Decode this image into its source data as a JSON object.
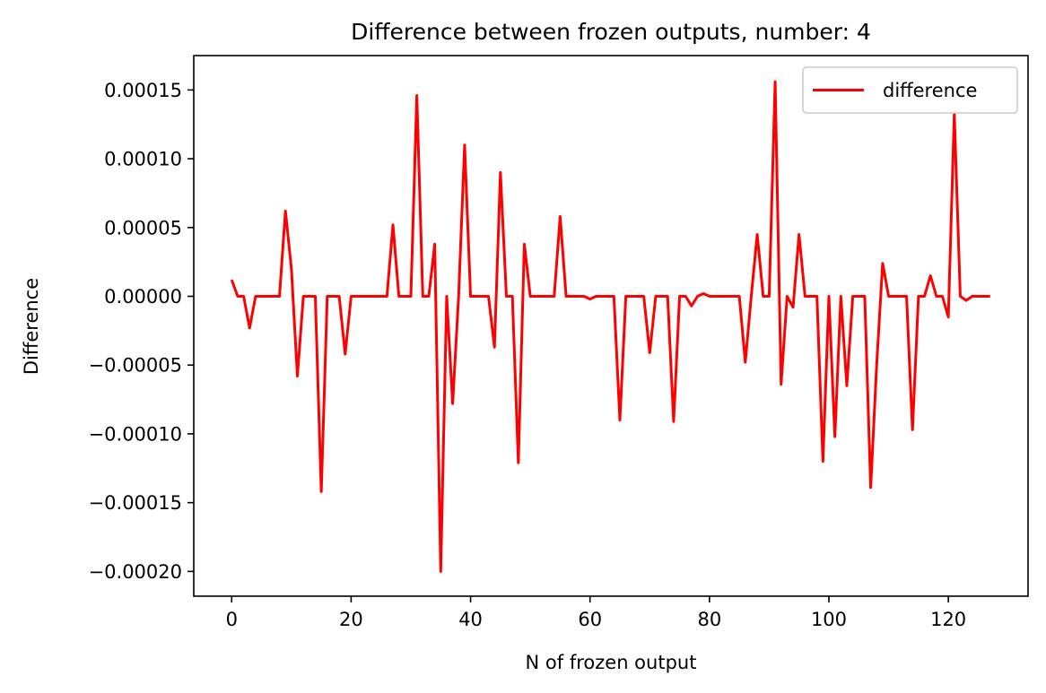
{
  "chart_data": {
    "type": "line",
    "title": "Difference between frozen outputs, number: 4",
    "xlabel": "N of frozen output",
    "ylabel": "Difference",
    "xlim": [
      -6.35,
      133.35
    ],
    "ylim": [
      -0.000218,
      0.000175
    ],
    "xticks": [
      0,
      20,
      40,
      60,
      80,
      100,
      120
    ],
    "xtick_labels": [
      "0",
      "20",
      "40",
      "60",
      "80",
      "100",
      "120"
    ],
    "yticks": [
      -0.0002,
      -0.00015,
      -0.0001,
      -5e-05,
      0,
      5e-05,
      0.0001,
      0.00015
    ],
    "ytick_labels": [
      "−0.00020",
      "−0.00015",
      "−0.00010",
      "−0.00005",
      "0.00000",
      "0.00005",
      "0.00010",
      "0.00015"
    ],
    "grid": false,
    "legend_position": "upper right",
    "series": [
      {
        "name": "difference",
        "color": "#ff0000",
        "x": [
          0,
          1,
          2,
          3,
          4,
          5,
          6,
          7,
          8,
          9,
          10,
          11,
          12,
          13,
          14,
          15,
          16,
          17,
          18,
          19,
          20,
          21,
          22,
          23,
          24,
          25,
          26,
          27,
          28,
          29,
          30,
          31,
          32,
          33,
          34,
          35,
          36,
          37,
          38,
          39,
          40,
          41,
          42,
          43,
          44,
          45,
          46,
          47,
          48,
          49,
          50,
          51,
          52,
          53,
          54,
          55,
          56,
          57,
          58,
          59,
          60,
          61,
          62,
          63,
          64,
          65,
          66,
          67,
          68,
          69,
          70,
          71,
          72,
          73,
          74,
          75,
          76,
          77,
          78,
          79,
          80,
          81,
          82,
          83,
          84,
          85,
          86,
          87,
          88,
          89,
          90,
          91,
          92,
          93,
          94,
          95,
          96,
          97,
          98,
          99,
          100,
          101,
          102,
          103,
          104,
          105,
          106,
          107,
          108,
          109,
          110,
          111,
          112,
          113,
          114,
          115,
          116,
          117,
          118,
          119,
          120,
          121,
          122,
          123,
          124,
          125,
          126,
          127
        ],
        "y": [
          1.2e-05,
          0,
          0,
          -2.3e-05,
          0,
          0,
          0,
          0,
          0,
          6.2e-05,
          2e-05,
          -5.8e-05,
          0,
          0,
          0,
          -0.000142,
          0,
          0,
          0,
          -4.2e-05,
          0,
          0,
          0,
          0,
          0,
          0,
          0,
          5.2e-05,
          0,
          0,
          0,
          0.000146,
          0,
          0,
          3.8e-05,
          -0.0002,
          0,
          -7.8e-05,
          0,
          0.00011,
          0,
          0,
          0,
          0,
          -3.7e-05,
          9e-05,
          0,
          0,
          -0.000121,
          3.8e-05,
          0,
          0,
          0,
          0,
          0,
          5.8e-05,
          0,
          0,
          0,
          0,
          -2e-06,
          0,
          0,
          0,
          0,
          -9e-05,
          0,
          0,
          0,
          0,
          -4.1e-05,
          0,
          0,
          0,
          -9.1e-05,
          0,
          0,
          -7e-06,
          0,
          2e-06,
          0,
          0,
          0,
          0,
          0,
          0,
          -4.8e-05,
          0,
          4.5e-05,
          0,
          0,
          0.000156,
          -6.4e-05,
          0,
          -8e-06,
          4.5e-05,
          0,
          0,
          0,
          -0.00012,
          0,
          -0.000102,
          0,
          -6.5e-05,
          0,
          0,
          0,
          -0.000139,
          -5e-05,
          2.4e-05,
          0,
          0,
          0,
          0,
          -9.7e-05,
          0,
          0,
          1.5e-05,
          0,
          0,
          -1.5e-05,
          0.000133,
          0,
          -3e-06,
          0,
          0,
          0,
          0
        ]
      }
    ]
  }
}
